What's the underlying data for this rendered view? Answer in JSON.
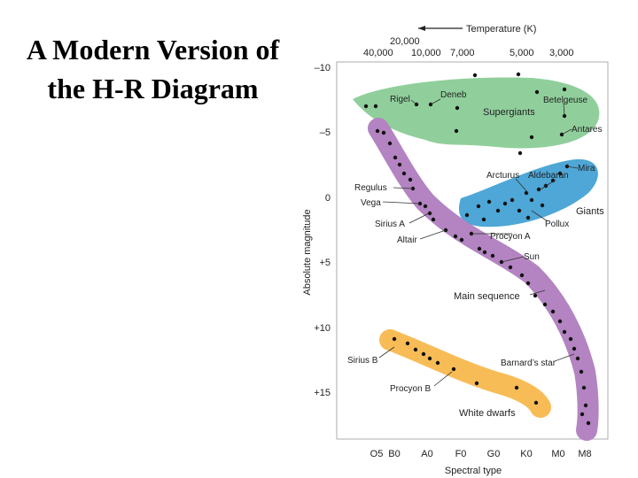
{
  "slide": {
    "title_line1": "A Modern Version of",
    "title_line2": "the H-R Diagram"
  },
  "diagram": {
    "temperature_axis_label": "Temperature (K)",
    "temperature_ticks": [
      "20,000",
      "40,000",
      "10,000",
      "7,000",
      "5,000",
      "3,000"
    ],
    "y_axis_label": "Absolute magnitude",
    "y_ticks": [
      "–10",
      "–5",
      "0",
      "+5",
      "+10",
      "+15"
    ],
    "x_axis_label": "Spectral type",
    "spectral_types": [
      "O5",
      "B0",
      "A0",
      "F0",
      "G0",
      "K0",
      "M0",
      "M8"
    ],
    "regions": {
      "supergiants": "Supergiants",
      "giants": "Giants",
      "main_sequence": "Main sequence",
      "white_dwarfs": "White dwarfs"
    },
    "stars": {
      "rigel": "Rigel",
      "deneb": "Deneb",
      "betelgeuse": "Betelgeuse",
      "antares": "Antares",
      "mira": "Mira",
      "arcturus": "Arcturus",
      "aldebaran": "Aldebaran",
      "regulus": "Regulus",
      "vega": "Vega",
      "sirius_a": "Sirius A",
      "altair": "Altair",
      "pollux": "Pollux",
      "procyon_a": "Procyon A",
      "sun": "Sun",
      "sirius_b": "Sirius B",
      "procyon_b": "Procyon B",
      "barnards_star": "Barnard’s star"
    },
    "colors": {
      "supergiants": "#90cf9c",
      "giants": "#4ea7d6",
      "main_sequence": "#b384c1",
      "white_dwarfs": "#f8bc57"
    }
  }
}
